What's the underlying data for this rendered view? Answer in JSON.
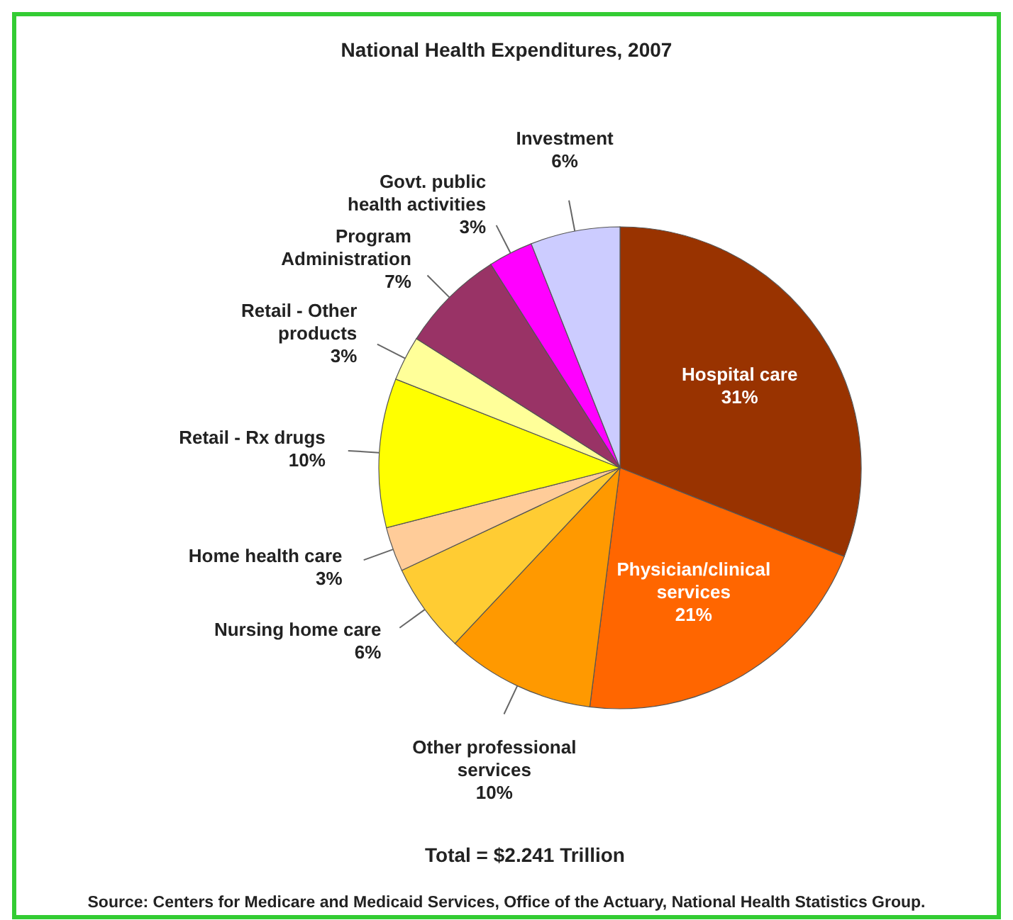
{
  "chart_data": {
    "type": "pie",
    "title": "National Health Expenditures, 2007",
    "categories": [
      "Hospital care",
      "Physician/clinical services",
      "Other professional services",
      "Nursing home care",
      "Home health care",
      "Retail - Rx drugs",
      "Retail - Other products",
      "Program Administration",
      "Govt. public health activities",
      "Investment"
    ],
    "values": [
      31,
      21,
      10,
      6,
      3,
      10,
      3,
      7,
      3,
      6
    ],
    "value_labels": [
      "31%",
      "21%",
      "10%",
      "6%",
      "3%",
      "10%",
      "3%",
      "7%",
      "3%",
      "6%"
    ],
    "colors": [
      "#993300",
      "#ff6600",
      "#ff9900",
      "#ffcc33",
      "#ffcc99",
      "#ffff00",
      "#ffff99",
      "#993366",
      "#ff00ff",
      "#ccccff"
    ],
    "annotations": [
      "Total = $2.241 Trillion",
      "Source: Centers for Medicare and Medicaid Services, Office of the Actuary, National Health Statistics Group."
    ]
  }
}
